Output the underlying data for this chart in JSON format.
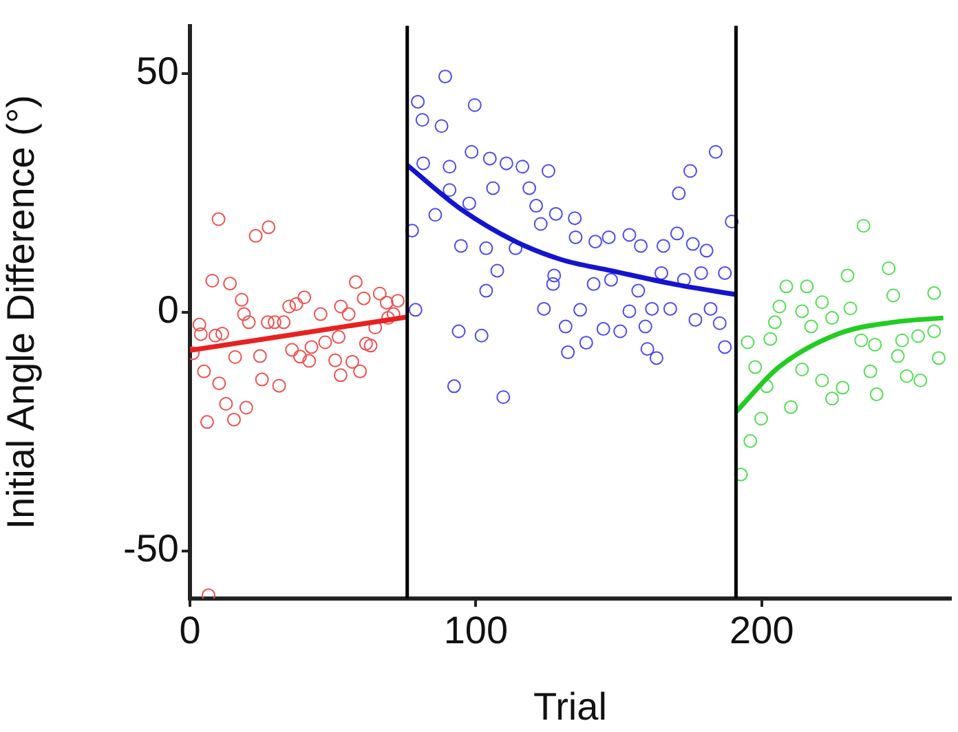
{
  "chart_data": {
    "type": "scatter",
    "xlabel": "Trial",
    "ylabel": "Initial Angle Difference (°)",
    "xlim": [
      0,
      266
    ],
    "ylim": [
      -60,
      60
    ],
    "xticks": [
      0,
      100,
      200
    ],
    "yticks": [
      -50,
      0,
      50
    ],
    "grid": false,
    "legend": false,
    "ref_lines": [
      {
        "axis": "x",
        "value": 76,
        "color": "#000000"
      },
      {
        "axis": "x",
        "value": 191,
        "color": "#000000"
      }
    ],
    "series": [
      {
        "type": "scatter",
        "marker": "circle",
        "color": "#f05050",
        "x": [
          10,
          23,
          27.5,
          7.8,
          14,
          6,
          15.4,
          19.7,
          12.6,
          10.2,
          25.2,
          31.2,
          4.9,
          6.5,
          58,
          52.7,
          59.5,
          3.3,
          3.8,
          8.9,
          11.3,
          18.1,
          18.9,
          20.6,
          15.8,
          24.5,
          27.2,
          29.6,
          32.8,
          34.7,
          37.2,
          40,
          35.7,
          38.5,
          41.7,
          42.5,
          45.7,
          47.3,
          50.8,
          52,
          52.8,
          55.5,
          56.8,
          60.8,
          61.6,
          63.2,
          64.8,
          66.4,
          68.8,
          71.2,
          72.7,
          69.3,
          1
        ],
        "values": [
          19.5,
          16,
          17.8,
          6.6,
          6,
          -23,
          -22.5,
          -20,
          -19.2,
          -14.9,
          -14.1,
          -15.4,
          -12.4,
          -59.3,
          6.3,
          -13.2,
          -12.4,
          -2.6,
          -4.6,
          -4.9,
          -4.5,
          2.6,
          -0.4,
          -2.1,
          -9.4,
          -9.2,
          -2.1,
          -2.1,
          -2.1,
          1.2,
          1.7,
          3.1,
          -7.9,
          -9.3,
          -10.2,
          -7.3,
          -0.4,
          -6.3,
          -10.1,
          -5.2,
          1.2,
          -0.4,
          -10.4,
          2.9,
          -6.6,
          -7,
          -3.2,
          3.9,
          2,
          -0.4,
          2.4,
          -1.2,
          -8.6
        ]
      },
      {
        "type": "scatter",
        "marker": "circle",
        "color": "#4a4af0",
        "x": [
          89.3,
          79.7,
          81.3,
          88,
          99.6,
          98.5,
          104.9,
          110.7,
          116.3,
          125.4,
          81.6,
          90.8,
          183.9,
          175,
          171,
          106,
          118.7,
          90.8,
          85.8,
          77.7,
          97.7,
          121.1,
          128,
          134.6,
          94.8,
          103.6,
          113.9,
          122.7,
          134.9,
          141.8,
          146.5,
          153.7,
          157.7,
          165.6,
          170.4,
          175.9,
          180.7,
          107.5,
          127.4,
          127,
          141.2,
          147.3,
          156.8,
          164.9,
          172.8,
          178.8,
          187.1,
          103.6,
          78.9,
          94,
          102,
          123.8,
          136.5,
          131.4,
          144.6,
          150.5,
          153.7,
          159.3,
          161.6,
          168,
          176.8,
          182.1,
          185.3,
          187.1,
          132.2,
          138.6,
          160,
          163.2,
          92.4,
          109.6,
          189.5
        ],
        "values": [
          49.4,
          44.1,
          40.3,
          39,
          43.4,
          33.6,
          32.2,
          31.2,
          30.5,
          29.6,
          31.2,
          30.5,
          33.6,
          29.6,
          24.9,
          26,
          26,
          25.6,
          20.4,
          17.1,
          22.8,
          22.3,
          20.6,
          19.7,
          13.9,
          13.4,
          13.4,
          18.5,
          15.7,
          14.8,
          15.7,
          16.2,
          13.9,
          13.9,
          16.5,
          14.3,
          12.9,
          8.7,
          7.7,
          5.9,
          5.9,
          6.8,
          4.5,
          8.2,
          6.8,
          8.2,
          8.2,
          4.5,
          0.5,
          -4,
          -4.9,
          0.7,
          0.5,
          -3,
          -3.5,
          -4,
          0.2,
          -3,
          0.7,
          0.7,
          -1.6,
          0.7,
          -2.3,
          -7.3,
          -8.4,
          -6.4,
          -7.7,
          -9.6,
          -15.5,
          -17.8,
          19
        ]
      },
      {
        "type": "scatter",
        "marker": "circle",
        "color": "#50e050",
        "x": [
          235.6,
          230,
          244.4,
          208.6,
          215.8,
          260.3,
          246,
          221.1,
          206.2,
          231,
          214.1,
          224.6,
          204.6,
          217.3,
          195.1,
          203,
          234.8,
          239.6,
          249.1,
          254.7,
          260.3,
          261.9,
          247.6,
          238,
          250.7,
          255.5,
          214.1,
          221.1,
          228.3,
          224.6,
          240.2,
          210.2,
          199.8,
          196,
          192.7,
          197.7,
          201.7
        ],
        "values": [
          18.1,
          7.7,
          9.2,
          5.4,
          5.4,
          4,
          3.5,
          2.1,
          1.2,
          0.8,
          0.2,
          -1.2,
          -2.1,
          -3,
          -6.3,
          -5.6,
          -5.9,
          -6.8,
          -5.9,
          -5,
          -4,
          -9.6,
          -9.2,
          -12.4,
          -13.4,
          -14.3,
          -12,
          -14.3,
          -15.8,
          -18.1,
          -17.2,
          -19.9,
          -22.3,
          -27,
          -34,
          -11.5,
          -15.5
        ]
      },
      {
        "type": "line",
        "marker": "none",
        "line_style": "solid",
        "color": "#e82020",
        "x": [
          0,
          76
        ],
        "values": [
          -8,
          -1
        ]
      },
      {
        "type": "line",
        "marker": "none",
        "line_style": "solid",
        "color": "#1414d0",
        "x": [
          76,
          95,
          113.9,
          130,
          147.3,
          170,
          191
        ],
        "values": [
          30.8,
          21.5,
          14.8,
          11,
          8.7,
          5.8,
          3.7
        ]
      },
      {
        "type": "line",
        "marker": "none",
        "line_style": "solid",
        "color": "#22cc22",
        "x": [
          191,
          206,
          226.9,
          246,
          263.5
        ],
        "values": [
          -20.9,
          -11.5,
          -4.5,
          -2.1,
          -1.2
        ]
      }
    ]
  }
}
